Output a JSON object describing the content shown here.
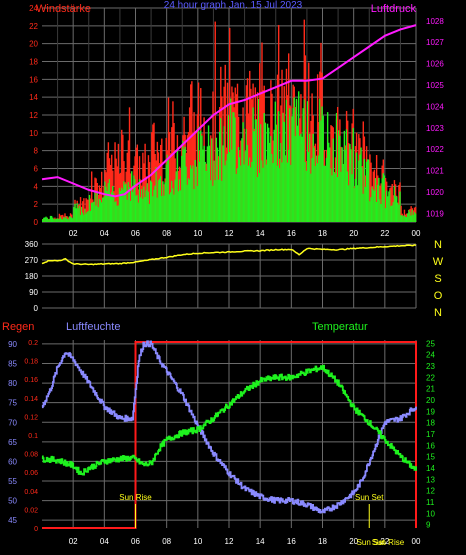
{
  "colors": {
    "background": "#000000",
    "grid": "#6b6b6b",
    "red": "#ff2a1a",
    "green": "#1ef21e",
    "magenta": "#ff1aff",
    "yellow": "#ffff1a",
    "blue": "#8a8aff",
    "white": "#ffffff",
    "frame": "#ff1a1a"
  },
  "chart_data": [
    {
      "type": "bar",
      "title": "24 hour graph Jan. 15 Jul 2023",
      "left_label": "Windstärke",
      "right_label": "Luftdruck",
      "x_ticks": [
        "02",
        "04",
        "06",
        "08",
        "10",
        "12",
        "14",
        "16",
        "18",
        "20",
        "22",
        "00"
      ],
      "left_ticks": [
        "0",
        "2",
        "4",
        "6",
        "8",
        "10",
        "12",
        "14",
        "16",
        "18",
        "20",
        "22",
        "24"
      ],
      "right_ticks": [
        "1019",
        "1020",
        "1021",
        "1022",
        "1023",
        "1024",
        "1025",
        "1026",
        "1027",
        "1028"
      ],
      "ylim_left": [
        0,
        24
      ],
      "ylim_right": [
        1018.6,
        1028.6
      ],
      "wind_avg_hourly": [
        0.5,
        0.5,
        1.5,
        2.5,
        3.5,
        4.5,
        3.5,
        5,
        6,
        7,
        8,
        9,
        10,
        10,
        10,
        10,
        11,
        10,
        9,
        8,
        6,
        4,
        3,
        1
      ],
      "wind_gust_hourly": [
        0.5,
        1,
        3,
        6,
        9,
        11,
        9,
        12,
        14,
        15,
        16,
        18,
        18,
        18,
        17,
        18,
        19,
        17,
        14,
        13,
        10,
        8,
        5,
        2
      ],
      "pressure": {
        "x": [
          0,
          1,
          2,
          3,
          4,
          4.7,
          5.3,
          6,
          7,
          8,
          9,
          10,
          11,
          12,
          13,
          14,
          15,
          16,
          17,
          18,
          19,
          20,
          21,
          22,
          23,
          24
        ],
        "y": [
          1020.6,
          1020.7,
          1020.4,
          1020.1,
          1019.9,
          1019.8,
          1019.9,
          1020.3,
          1020.8,
          1021.5,
          1022.2,
          1022.9,
          1023.6,
          1024.1,
          1024.3,
          1024.6,
          1024.9,
          1025.2,
          1025.2,
          1025.3,
          1025.8,
          1026.3,
          1026.8,
          1027.3,
          1027.6,
          1027.8
        ]
      }
    },
    {
      "type": "line",
      "right_labels": [
        "N",
        "W",
        "S",
        "O",
        "N"
      ],
      "left_ticks": [
        "0",
        "90",
        "180",
        "270",
        "360"
      ],
      "x_ticks": [
        "02",
        "04",
        "06",
        "08",
        "10",
        "12",
        "14",
        "16",
        "18",
        "20",
        "22",
        "00"
      ],
      "ylim": [
        0,
        360
      ],
      "direction": {
        "x": [
          0,
          0.5,
          1,
          1.5,
          2,
          3,
          4,
          5,
          6,
          7,
          8,
          9,
          10,
          11,
          12,
          13,
          14,
          15,
          16,
          16.5,
          17,
          18,
          19,
          20,
          21,
          22,
          23,
          24
        ],
        "y": [
          252,
          268,
          265,
          275,
          248,
          245,
          248,
          250,
          258,
          272,
          285,
          300,
          308,
          312,
          315,
          320,
          322,
          328,
          330,
          300,
          335,
          330,
          328,
          335,
          340,
          345,
          350,
          353
        ]
      }
    },
    {
      "type": "line",
      "left_title": "Regen",
      "humidity_title": "Luftfeuchte",
      "temperature_title": "Temperatur",
      "rain_ticks": [
        "0",
        "0.02",
        "0.04",
        "0.06",
        "0.08",
        "0.1",
        "0.12",
        "0.14",
        "0.16",
        "0.18",
        "0.2"
      ],
      "humidity_ticks": [
        "45",
        "50",
        "55",
        "60",
        "65",
        "70",
        "75",
        "80",
        "85",
        "90"
      ],
      "temperature_ticks": [
        "9",
        "10",
        "11",
        "12",
        "13",
        "14",
        "15",
        "16",
        "17",
        "18",
        "19",
        "20",
        "21",
        "22",
        "23",
        "24",
        "25"
      ],
      "x_ticks": [
        "02",
        "04",
        "06",
        "08",
        "10",
        "12",
        "14",
        "16",
        "18",
        "20",
        "22",
        "00"
      ],
      "ylim_humidity": [
        43,
        91
      ],
      "ylim_temperature": [
        8.7,
        25.3
      ],
      "annotations": [
        "Sun Rise",
        "Sun Set",
        "Sun Set",
        "Sun Rise"
      ],
      "humidity": {
        "x": [
          0,
          0.5,
          1,
          1.5,
          2,
          3,
          4,
          5,
          5.8,
          6.2,
          6.5,
          7,
          7.5,
          8,
          9,
          10,
          11,
          12,
          13,
          14,
          15,
          16,
          17,
          18,
          19,
          20,
          20.5,
          21,
          21.5,
          22,
          23,
          24
        ],
        "y": [
          74,
          78,
          84,
          88,
          86,
          80,
          74,
          71,
          71,
          86,
          90,
          90,
          86,
          83,
          77,
          69,
          62,
          57,
          53,
          51,
          50,
          50,
          49,
          47,
          49,
          52,
          55,
          60,
          65,
          70,
          71,
          74
        ]
      },
      "temperature": {
        "x": [
          0,
          1,
          2,
          2.5,
          3,
          4,
          5,
          5.8,
          6.5,
          7,
          7.5,
          8,
          9,
          10,
          11,
          12,
          13,
          14,
          15,
          16,
          17,
          18,
          19,
          20,
          21,
          22,
          23,
          24
        ],
        "y": [
          14.8,
          14.7,
          14.2,
          13.5,
          14.0,
          14.6,
          14.8,
          14.9,
          14.3,
          14.4,
          15.7,
          16.5,
          17.1,
          17.4,
          18.4,
          19.6,
          20.8,
          21.7,
          22.0,
          22.0,
          22.5,
          22.9,
          21.5,
          19.3,
          18.0,
          16.5,
          15.0,
          13.8
        ]
      },
      "rain": {
        "x": [
          0,
          6,
          6,
          24,
          24
        ],
        "y": [
          0,
          0,
          0.2,
          0.2,
          0
        ]
      }
    }
  ]
}
